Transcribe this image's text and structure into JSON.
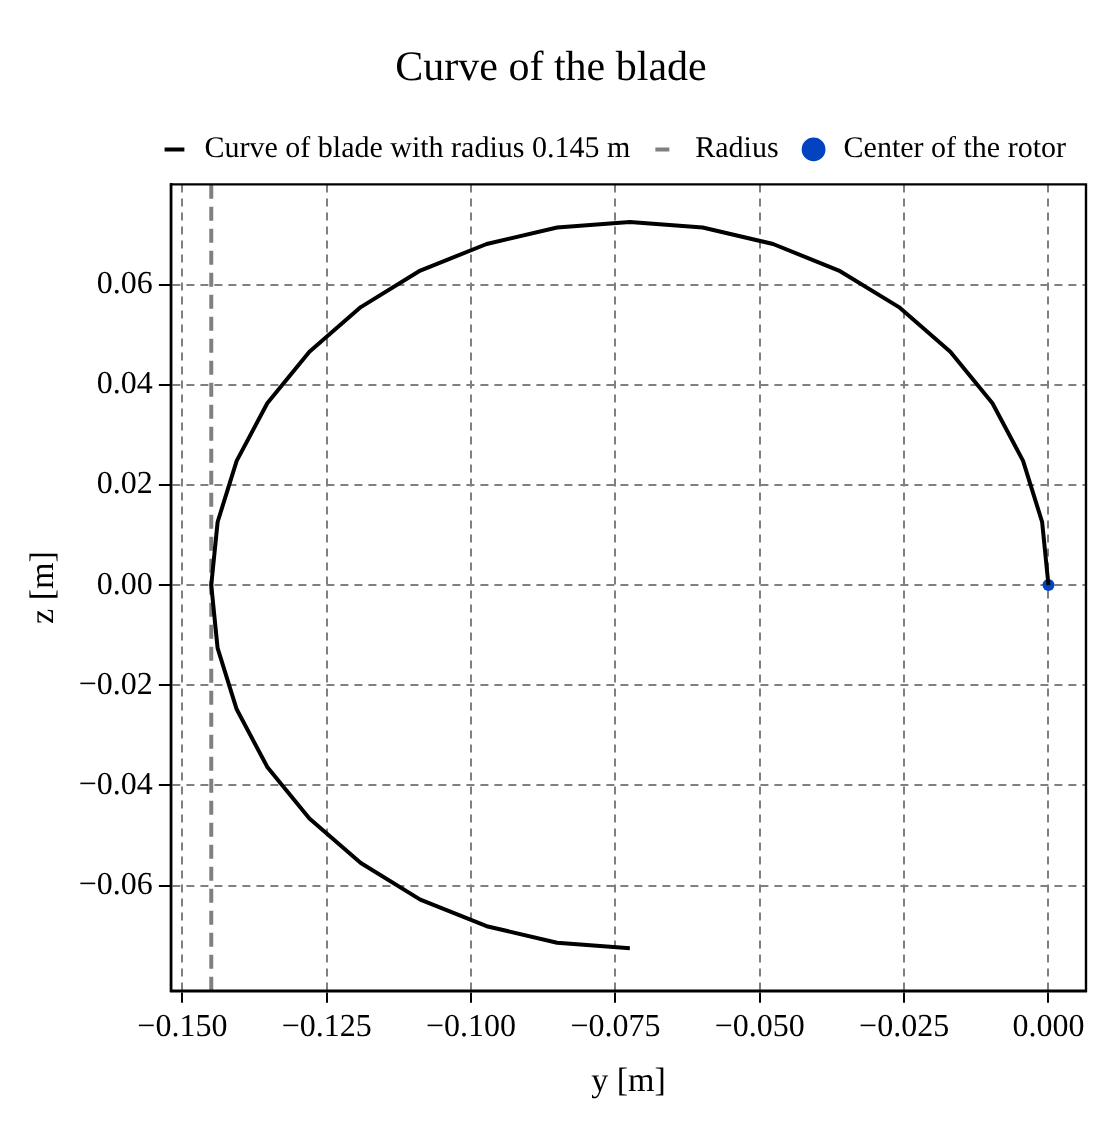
{
  "chart_data": {
    "type": "line",
    "title": "Curve of the blade",
    "xlabel": "y [m]",
    "ylabel": "z [m]",
    "series": [
      {
        "name": "Curve of blade with radius 0.145 m",
        "type": "line",
        "color": "#000000",
        "line_style": "solid",
        "marker": "none",
        "x": [
          0,
          -0.0011,
          -0.0044,
          -0.0097,
          -0.017,
          -0.0259,
          -0.0363,
          -0.0477,
          -0.0599,
          -0.0725,
          -0.0851,
          -0.0973,
          -0.1088,
          -0.1191,
          -0.128,
          -0.1353,
          -0.1406,
          -0.1439,
          -0.145,
          -0.1439,
          -0.1406,
          -0.1353,
          -0.128,
          -0.1191,
          -0.1088,
          -0.0973,
          -0.0851,
          -0.0725
        ],
        "values": [
          0,
          0.0126,
          0.0248,
          0.0363,
          0.0466,
          0.0555,
          0.0628,
          0.0681,
          0.0714,
          0.0725,
          0.0714,
          0.0681,
          0.0628,
          0.0555,
          0.0466,
          0.0363,
          0.0248,
          0.0126,
          0,
          -0.0126,
          -0.0248,
          -0.0363,
          -0.0466,
          -0.0555,
          -0.0628,
          -0.0681,
          -0.0714,
          -0.0725
        ]
      },
      {
        "name": "Radius",
        "type": "line",
        "color": "#808080",
        "line_style": "dashed",
        "marker": "none",
        "x": [
          -0.145,
          -0.145
        ],
        "values": [
          -0.081,
          0.08
        ]
      },
      {
        "name": "Center of the rotor",
        "type": "scatter",
        "color": "#0343c0",
        "marker": "circle",
        "x": [
          0
        ],
        "values": [
          0
        ]
      }
    ],
    "xlim": [
      -0.152,
      0.0065
    ],
    "ylim": [
      -0.081,
      0.08
    ],
    "xticks": [
      {
        "value": -0.15,
        "label": "−0.150"
      },
      {
        "value": -0.125,
        "label": "−0.125"
      },
      {
        "value": -0.1,
        "label": "−0.100"
      },
      {
        "value": -0.075,
        "label": "−0.075"
      },
      {
        "value": -0.05,
        "label": "−0.050"
      },
      {
        "value": -0.025,
        "label": "−0.025"
      },
      {
        "value": 0,
        "label": "0.000"
      }
    ],
    "yticks": [
      {
        "value": -0.06,
        "label": "−0.06"
      },
      {
        "value": -0.04,
        "label": "−0.04"
      },
      {
        "value": -0.02,
        "label": "−0.02"
      },
      {
        "value": 0,
        "label": "0.00"
      },
      0.02,
      0.04,
      0.06
    ],
    "grid": true,
    "legend": "top right"
  }
}
